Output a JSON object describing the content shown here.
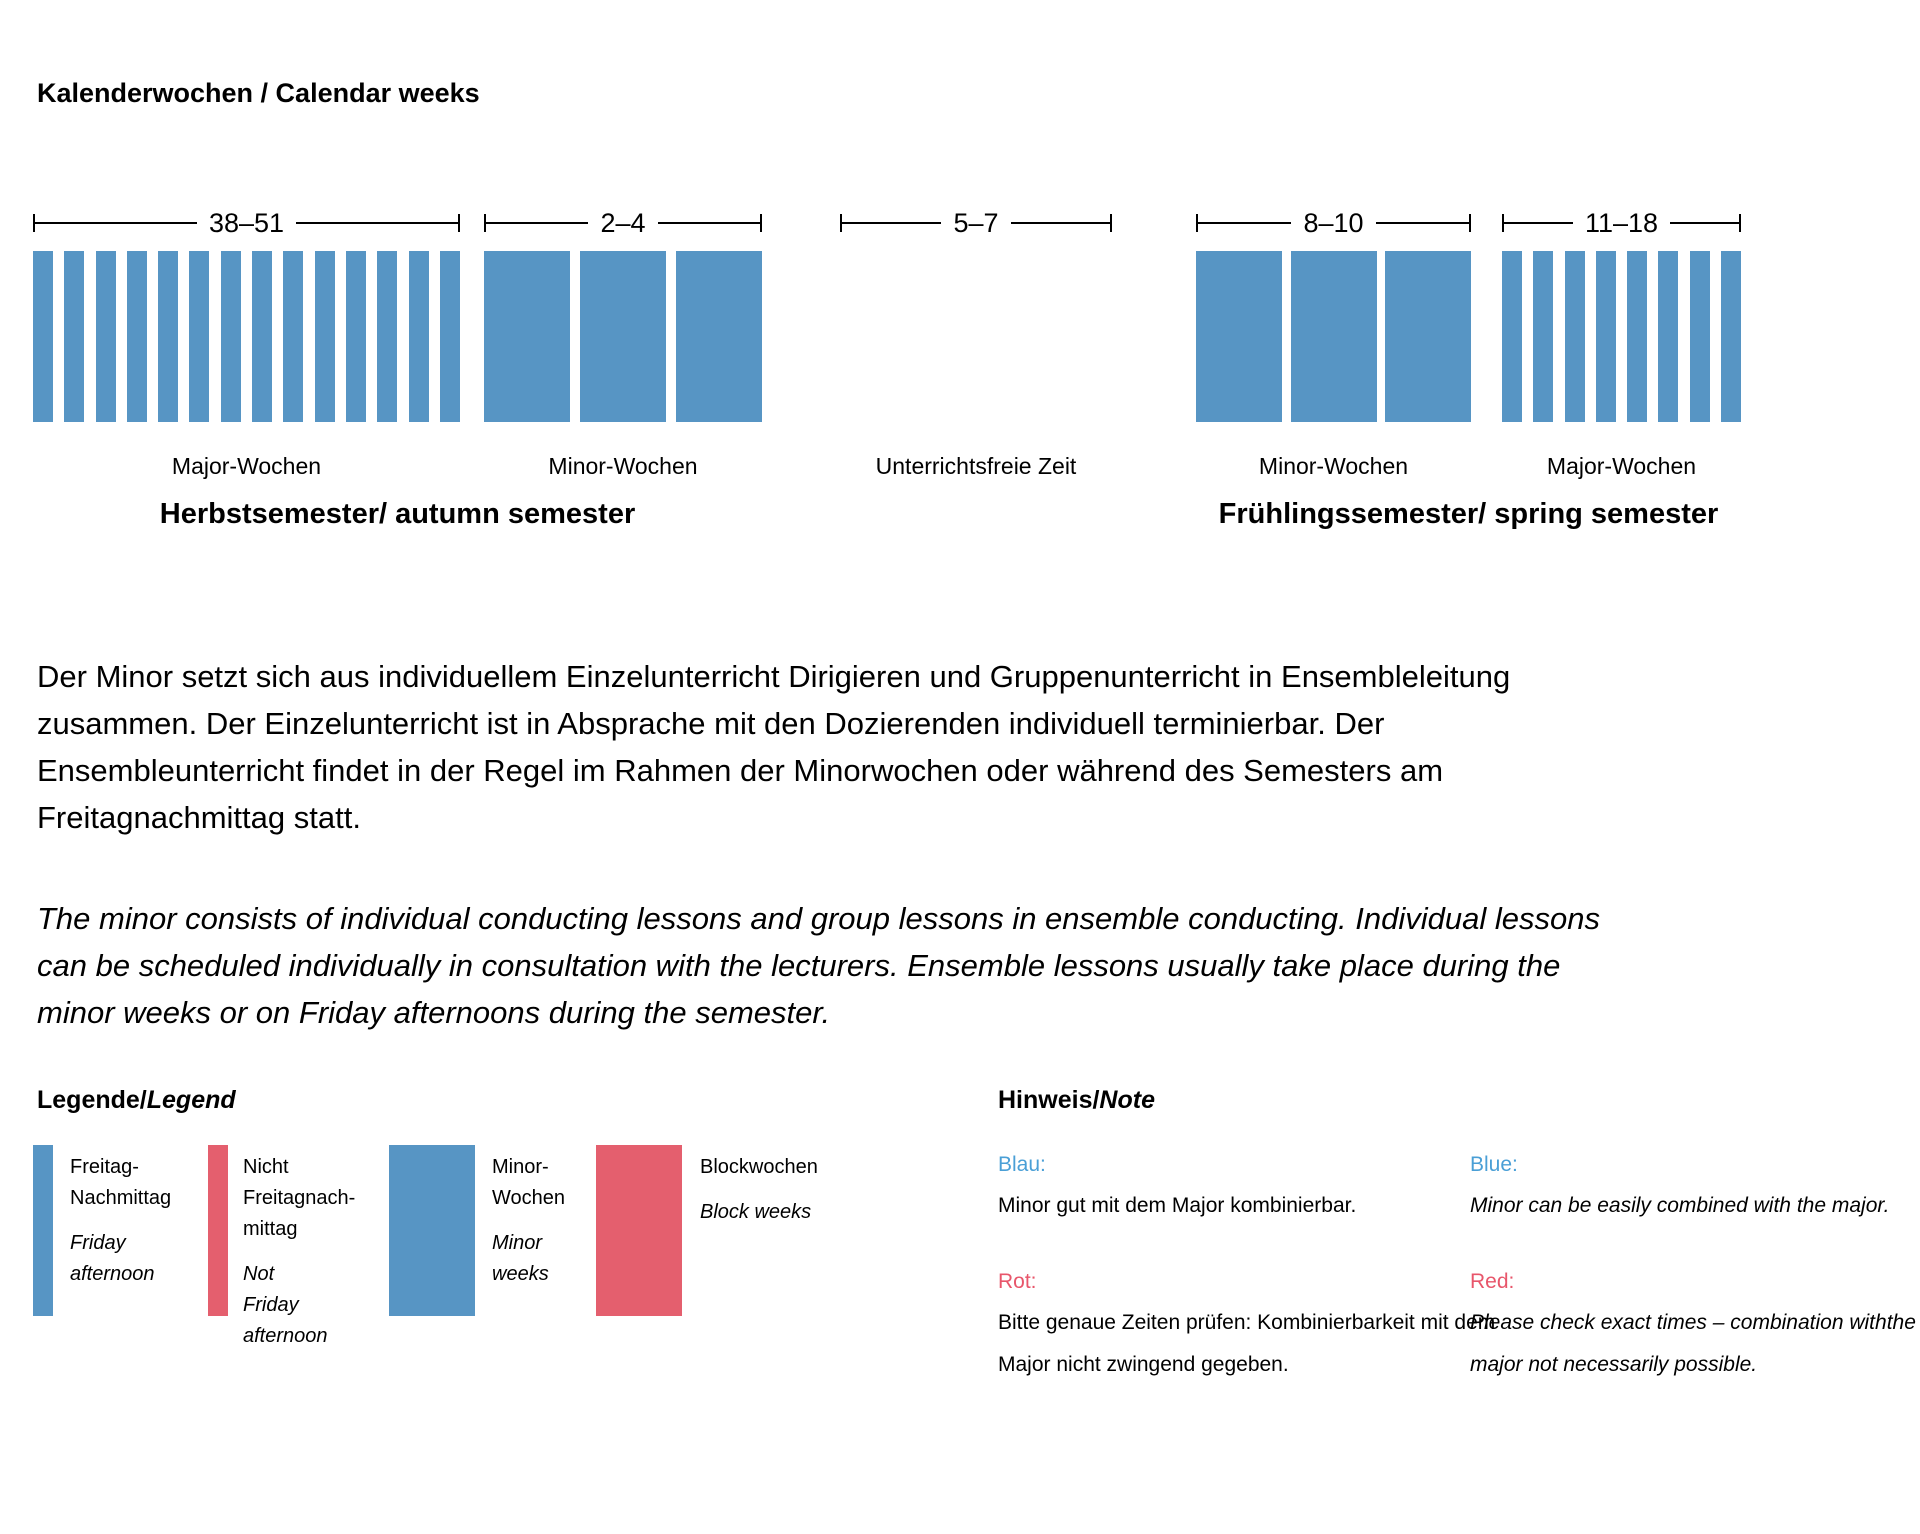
{
  "page": {
    "title": "Kalenderwochen / Calendar weeks"
  },
  "colors": {
    "blue": "#5795c4",
    "red": "#e45f6e",
    "blue_text": "#4a9fd6",
    "red_text": "#e8566b",
    "text": "#000000",
    "background": "#ffffff"
  },
  "timeline": {
    "groups": [
      {
        "id": "autumn-major",
        "range": "38–51",
        "bar_type": "thin",
        "bar_count": 14,
        "label": "Major-Wochen"
      },
      {
        "id": "autumn-minor",
        "range": "2–4",
        "bar_type": "wide",
        "bar_count": 3,
        "label": "Minor-Wochen"
      },
      {
        "id": "break",
        "range": "5–7",
        "bar_type": "none",
        "bar_count": 0,
        "label": "Unterrichtsfreie Zeit"
      },
      {
        "id": "spring-minor",
        "range": "8–10",
        "bar_type": "wide",
        "bar_count": 3,
        "label": "Minor-Wochen"
      },
      {
        "id": "spring-major",
        "range": "11–18",
        "bar_type": "thin",
        "bar_count": 8,
        "label": "Major-Wochen"
      }
    ],
    "semesters": [
      {
        "label": "Herbstsemester/ autumn semester"
      },
      {
        "label": "Frühlingssemester/ spring semester"
      }
    ]
  },
  "paragraphs": {
    "german": "Der Minor setzt sich aus individuellem Einzelunterricht Dirigieren und Gruppenunterricht in Ensembleleitung zusammen. Der Einzelunterricht ist in Absprache mit den Dozierenden individuell terminierbar. Der Ensembleunterricht findet in der Regel im Rahmen der Minorwochen oder während des Semesters am Freitagnachmittag statt.",
    "english": "The minor consists of individual conducting lessons and group lessons in ensemble conducting. Individual lessons can be scheduled individually in consultation with the lecturers. Ensemble lessons usually take place during the minor weeks or on Friday afternoons during the semester."
  },
  "legend": {
    "title_de": "Legende/",
    "title_en": "Legend",
    "items": [
      {
        "swatch": "thin blue",
        "label_de": "Freitag-\nNachmittag",
        "label_en": "Friday\nafternoon"
      },
      {
        "swatch": "thin red",
        "label_de": "Nicht\nFreitagnach-\nmittag",
        "label_en": "Not\nFriday\nafternoon"
      },
      {
        "swatch": "wide blue",
        "label_de": "Minor-\nWochen",
        "label_en": "Minor\nweeks"
      },
      {
        "swatch": "wide red",
        "label_de": "Blockwochen",
        "label_en": "Block weeks"
      }
    ]
  },
  "note": {
    "title_de": "Hinweis/",
    "title_en": "Note",
    "german": {
      "blue_label": "Blau:",
      "blue_text": "Minor gut mit dem Major kombinierbar.",
      "red_label": "Rot:",
      "red_text": "Bitte genaue Zeiten prüfen: Kombinierbarkeit mit dem Major nicht zwingend gegeben."
    },
    "english": {
      "blue_label": "Blue:",
      "blue_text": "Minor can be easily combined with the major.",
      "red_label": "Red:",
      "red_text": "Please check exact times – combination withthe major not necessarily possible."
    }
  }
}
